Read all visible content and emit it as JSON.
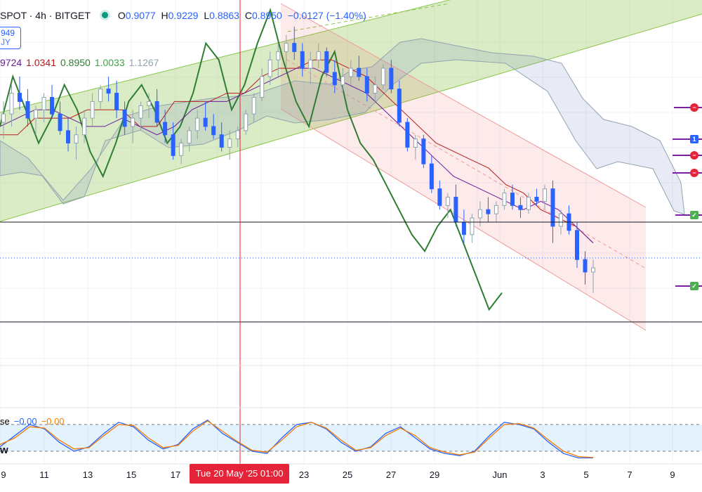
{
  "header": {
    "symbol": "SPOT · 4h · BITGET",
    "open_label": "O",
    "open": "0.9077",
    "high_label": "H",
    "high": "0.9229",
    "low_label": "L",
    "low": "0.8863",
    "close_label": "C",
    "close": "0.8950",
    "change": "−0.0127 (−1.40%)"
  },
  "price_box": {
    "line1": "949",
    "line2": "JY"
  },
  "ichimoku_values": [
    "9724",
    "1.0341",
    "0.8950",
    "1.0033",
    "1.1267"
  ],
  "stoch_header": {
    "label": "se",
    "k": "−0.00",
    "d": "−0.00"
  },
  "osc_label": "w",
  "time_flag": "Tue 20 May '25  01:00",
  "markers": [
    "minus",
    "minus",
    "1",
    "minus",
    "minus",
    "check",
    "check"
  ],
  "chart_data": {
    "type": "candlestick",
    "x_tick_labels": [
      "9",
      "11",
      "13",
      "15",
      "17",
      "23",
      "25",
      "27",
      "29",
      "Jun",
      "3",
      "5",
      "7",
      "9"
    ],
    "candles_ohlc": [
      [
        1.005,
        1.03,
        0.985,
        1.015
      ],
      [
        1.015,
        1.05,
        1.0,
        1.04
      ],
      [
        1.04,
        1.06,
        1.02,
        1.03
      ],
      [
        1.03,
        1.045,
        1.0,
        1.01
      ],
      [
        1.01,
        1.025,
        0.99,
        1.02
      ],
      [
        1.02,
        1.04,
        1.005,
        1.035
      ],
      [
        1.035,
        1.05,
        1.01,
        1.015
      ],
      [
        1.015,
        1.03,
        0.99,
        0.995
      ],
      [
        0.995,
        1.01,
        0.97,
        0.98
      ],
      [
        0.98,
        1.0,
        0.96,
        0.99
      ],
      [
        0.99,
        1.02,
        0.98,
        1.01
      ],
      [
        1.01,
        1.04,
        1.0,
        1.03
      ],
      [
        1.03,
        1.05,
        1.02,
        1.045
      ],
      [
        1.045,
        1.06,
        1.03,
        1.04
      ],
      [
        1.04,
        1.055,
        1.01,
        1.02
      ],
      [
        1.02,
        1.03,
        0.99,
        1.0
      ],
      [
        1.0,
        1.02,
        0.98,
        1.01
      ],
      [
        1.01,
        1.03,
        0.995,
        1.025
      ],
      [
        1.025,
        1.04,
        1.01,
        1.03
      ],
      [
        1.03,
        1.045,
        1.0,
        1.005
      ],
      [
        1.005,
        1.02,
        0.98,
        0.99
      ],
      [
        0.99,
        1.005,
        0.96,
        0.965
      ],
      [
        0.965,
        0.985,
        0.955,
        0.98
      ],
      [
        0.98,
        1.0,
        0.97,
        0.995
      ],
      [
        0.995,
        1.02,
        0.985,
        1.01
      ],
      [
        1.01,
        1.03,
        0.995,
        1.0
      ],
      [
        1.0,
        1.015,
        0.985,
        0.99
      ],
      [
        0.99,
        1.005,
        0.97,
        0.975
      ],
      [
        0.975,
        0.995,
        0.96,
        0.985
      ],
      [
        0.985,
        1.0,
        0.975,
        0.995
      ],
      [
        0.995,
        1.02,
        0.99,
        1.015
      ],
      [
        1.015,
        1.04,
        1.005,
        1.035
      ],
      [
        1.035,
        1.07,
        1.03,
        1.06
      ],
      [
        1.06,
        1.09,
        1.05,
        1.08
      ],
      [
        1.08,
        1.1,
        1.06,
        1.09
      ],
      [
        1.09,
        1.11,
        1.07,
        1.1
      ],
      [
        1.1,
        1.12,
        1.08,
        1.09
      ],
      [
        1.09,
        1.1,
        1.06,
        1.07
      ],
      [
        1.07,
        1.09,
        1.05,
        1.08
      ],
      [
        1.08,
        1.1,
        1.07,
        1.09
      ],
      [
        1.09,
        1.095,
        1.06,
        1.065
      ],
      [
        1.065,
        1.08,
        1.04,
        1.05
      ],
      [
        1.05,
        1.07,
        1.04,
        1.06
      ],
      [
        1.06,
        1.08,
        1.05,
        1.07
      ],
      [
        1.07,
        1.085,
        1.055,
        1.06
      ],
      [
        1.06,
        1.07,
        1.03,
        1.04
      ],
      [
        1.04,
        1.06,
        1.03,
        1.05
      ],
      [
        1.05,
        1.075,
        1.045,
        1.07
      ],
      [
        1.07,
        1.08,
        1.04,
        1.045
      ],
      [
        1.045,
        1.055,
        1.0,
        1.005
      ],
      [
        1.005,
        1.01,
        0.97,
        0.975
      ],
      [
        0.975,
        0.99,
        0.96,
        0.985
      ],
      [
        0.985,
        0.99,
        0.95,
        0.955
      ],
      [
        0.955,
        0.965,
        0.92,
        0.925
      ],
      [
        0.925,
        0.935,
        0.9,
        0.905
      ],
      [
        0.905,
        0.92,
        0.89,
        0.915
      ],
      [
        0.915,
        0.93,
        0.88,
        0.885
      ],
      [
        0.885,
        0.9,
        0.86,
        0.87
      ],
      [
        0.87,
        0.895,
        0.86,
        0.89
      ],
      [
        0.89,
        0.91,
        0.88,
        0.9
      ],
      [
        0.9,
        0.915,
        0.885,
        0.895
      ],
      [
        0.895,
        0.91,
        0.885,
        0.905
      ],
      [
        0.905,
        0.925,
        0.9,
        0.92
      ],
      [
        0.92,
        0.93,
        0.9,
        0.905
      ],
      [
        0.905,
        0.915,
        0.89,
        0.9
      ],
      [
        0.9,
        0.92,
        0.895,
        0.915
      ],
      [
        0.915,
        0.925,
        0.905,
        0.91
      ],
      [
        0.91,
        0.93,
        0.9,
        0.925
      ],
      [
        0.925,
        0.935,
        0.86,
        0.88
      ],
      [
        0.88,
        0.9,
        0.87,
        0.895
      ],
      [
        0.895,
        0.905,
        0.87,
        0.875
      ],
      [
        0.875,
        0.885,
        0.83,
        0.84
      ],
      [
        0.84,
        0.85,
        0.81,
        0.825
      ],
      [
        0.825,
        0.84,
        0.8,
        0.83
      ]
    ],
    "lines": [
      {
        "name": "green",
        "color": "#2e7d32",
        "values": [
          1.0,
          1.06,
          1.02,
          0.98,
          1.01,
          1.05,
          1.02,
          0.97,
          0.94,
          0.98,
          1.03,
          1.05,
          1.02,
          0.98,
          1.0,
          1.04,
          1.1,
          1.08,
          1.02,
          1.05,
          1.1,
          1.14,
          1.08,
          1.03,
          1.0,
          1.06,
          1.09,
          1.02,
          0.98,
          0.96,
          0.93,
          0.9,
          0.87,
          0.85,
          0.88,
          0.9,
          0.86,
          0.82,
          0.78,
          0.8
        ]
      },
      {
        "name": "red",
        "color": "#b71c1c",
        "values": [
          0.99,
          0.99,
          1.01,
          1.01,
          1.01,
          1.02,
          1.02,
          1.02,
          1.0,
          1.0,
          1.03,
          1.03,
          1.03,
          1.04,
          1.04,
          1.06,
          1.07,
          1.07,
          1.08,
          1.08,
          1.07,
          1.06,
          1.04,
          1.02,
          1.0,
          0.98,
          0.97,
          0.96,
          0.95,
          0.93,
          0.92,
          0.9,
          0.89,
          0.88,
          0.86
        ]
      },
      {
        "name": "purple",
        "color": "#6a1b9a",
        "values": [
          1.0,
          1.01,
          1.02,
          1.02,
          1.01,
          1.0,
          1.0,
          1.01,
          1.0,
          0.99,
          1.0,
          1.02,
          1.03,
          1.03,
          1.04,
          1.05,
          1.06,
          1.07,
          1.07,
          1.06,
          1.05,
          1.04,
          1.02,
          1.0,
          0.98,
          0.96,
          0.94,
          0.93,
          0.92,
          0.91,
          0.9,
          0.91,
          0.9,
          0.88,
          0.86
        ]
      }
    ],
    "horizontal_levels": [
      0.885,
      0.765
    ],
    "current_price_line": 0.85,
    "stochastic": {
      "k": [
        30,
        55,
        80,
        70,
        40,
        20,
        30,
        60,
        85,
        75,
        45,
        25,
        35,
        70,
        90,
        60,
        40,
        20,
        15,
        50,
        80,
        85,
        70,
        40,
        20,
        30,
        60,
        75,
        50,
        25,
        15,
        10,
        20,
        55,
        85,
        80,
        70,
        40,
        15,
        5,
        5
      ],
      "d": [
        35,
        50,
        75,
        72,
        45,
        25,
        28,
        55,
        80,
        78,
        50,
        28,
        33,
        65,
        88,
        65,
        42,
        22,
        18,
        45,
        75,
        85,
        72,
        45,
        22,
        28,
        55,
        72,
        55,
        28,
        18,
        12,
        18,
        50,
        80,
        82,
        72,
        45,
        20,
        8,
        6
      ],
      "upper": 80,
      "lower": 20
    }
  }
}
